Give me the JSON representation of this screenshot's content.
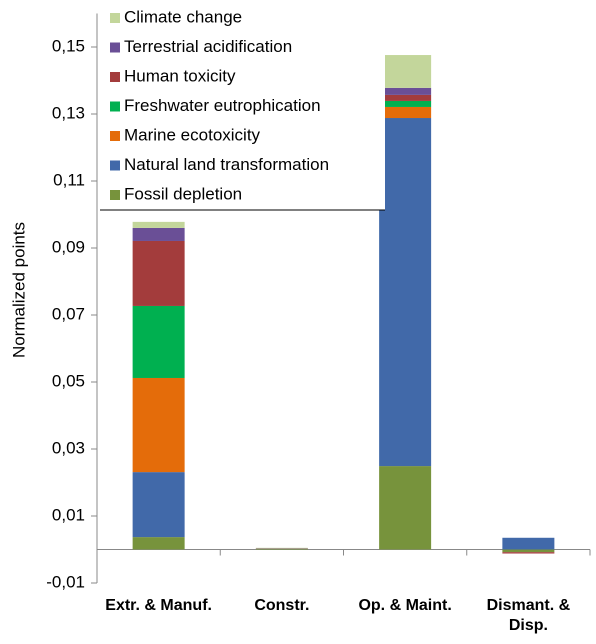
{
  "chart_data": {
    "type": "stacked_bar",
    "y_label": "Normalized points",
    "categories": [
      "Extr. & Manuf.",
      "Constr.",
      "Op. & Maint.",
      "Dismant. & Disp."
    ],
    "series": [
      {
        "name": "Fossil depletion",
        "color": "#77933c",
        "values": [
          0.0037,
          0.0002,
          0.0249,
          -0.0008
        ]
      },
      {
        "name": "Natural land transformation",
        "color": "#4169a9",
        "values": [
          0.0194,
          0.0001,
          0.1039,
          0.0035
        ]
      },
      {
        "name": "Marine ecotoxicity",
        "color": "#e46c0a",
        "values": [
          0.0281,
          0.0001,
          0.0033,
          0
        ]
      },
      {
        "name": "Freshwater eutrophication",
        "color": "#00b050",
        "values": [
          0.0215,
          0,
          0.0018,
          0
        ]
      },
      {
        "name": "Human toxicity",
        "color": "#a33c3c",
        "values": [
          0.0194,
          0,
          0.0018,
          -0.0004
        ]
      },
      {
        "name": "Terrestrial acidification",
        "color": "#6a4f96",
        "values": [
          0.0039,
          0,
          0.0021,
          0
        ]
      },
      {
        "name": "Climate change",
        "color": "#c3d69b",
        "values": [
          0.0018,
          0.0001,
          0.0098,
          0
        ]
      }
    ],
    "ylim": [
      -0.01,
      0.16
    ],
    "yticks": [
      {
        "value": -0.01,
        "label": "-0,01"
      },
      {
        "value": 0.01,
        "label": "0,01"
      },
      {
        "value": 0.03,
        "label": "0,03"
      },
      {
        "value": 0.05,
        "label": "0,05"
      },
      {
        "value": 0.07,
        "label": "0,07"
      },
      {
        "value": 0.09,
        "label": "0,09"
      },
      {
        "value": 0.11,
        "label": "0,11"
      },
      {
        "value": 0.13,
        "label": "0,13"
      },
      {
        "value": 0.15,
        "label": "0,15"
      }
    ],
    "legend": "top-left"
  }
}
